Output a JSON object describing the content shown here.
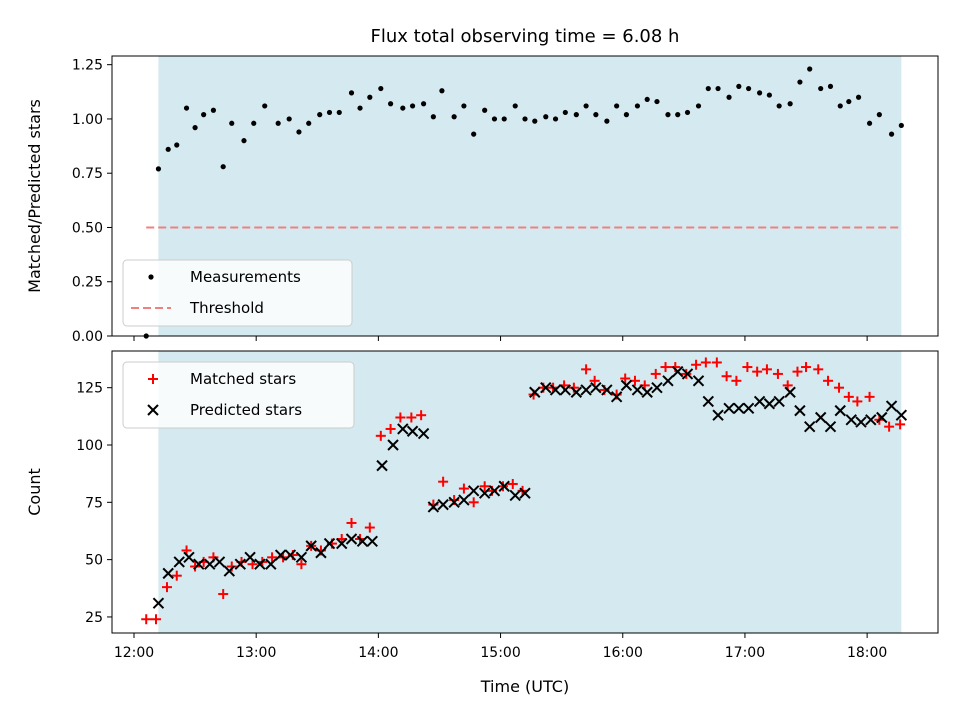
{
  "chart_data": {
    "title": "Flux total observing time = 6.08 h",
    "xlabel": "Time (UTC)",
    "x_ticks": [
      "12:00",
      "13:00",
      "14:00",
      "15:00",
      "16:00",
      "17:00",
      "18:00"
    ],
    "x_tick_values": [
      12,
      13,
      14,
      15,
      16,
      17,
      18
    ],
    "xlim": [
      11.82,
      18.58
    ],
    "observing_window": [
      12.2,
      18.28
    ],
    "colors": {
      "shade": "#d4eaf0",
      "threshold": "#f08080",
      "matched": "#ff0000",
      "predicted": "#000000",
      "measurements": "#000000"
    },
    "panels": [
      {
        "type": "scatter",
        "ylabel": "Matched/Predicted stars",
        "ylim": [
          0,
          1.29
        ],
        "y_ticks": [
          "0.00",
          "0.25",
          "0.50",
          "0.75",
          "1.00",
          "1.25"
        ],
        "y_tick_values": [
          0,
          0.25,
          0.5,
          0.75,
          1.0,
          1.25
        ],
        "threshold": {
          "value": 0.5,
          "x_range": [
            12.1,
            18.28
          ]
        },
        "legend": {
          "placement": "lower-left",
          "entries": [
            "Measurements",
            "Threshold"
          ]
        },
        "series": [
          {
            "name": "Measurements",
            "x": [
              12.1,
              12.2,
              12.28,
              12.35,
              12.43,
              12.5,
              12.57,
              12.65,
              12.73,
              12.8,
              12.9,
              12.98,
              13.07,
              13.18,
              13.27,
              13.35,
              13.43,
              13.52,
              13.6,
              13.68,
              13.78,
              13.85,
              13.93,
              14.02,
              14.1,
              14.2,
              14.28,
              14.37,
              14.45,
              14.52,
              14.62,
              14.7,
              14.78,
              14.87,
              14.95,
              15.03,
              15.12,
              15.2,
              15.28,
              15.37,
              15.45,
              15.53,
              15.62,
              15.7,
              15.78,
              15.87,
              15.95,
              16.03,
              16.12,
              16.2,
              16.28,
              16.37,
              16.45,
              16.53,
              16.62,
              16.7,
              16.78,
              16.87,
              16.95,
              17.03,
              17.12,
              17.2,
              17.28,
              17.37,
              17.45,
              17.53,
              17.62,
              17.7,
              17.78,
              17.85,
              17.93,
              18.02,
              18.1,
              18.2,
              18.28
            ],
            "y": [
              0.0,
              0.77,
              0.86,
              0.88,
              1.05,
              0.96,
              1.02,
              1.04,
              0.78,
              0.98,
              0.9,
              0.98,
              1.06,
              0.98,
              1.0,
              0.94,
              0.98,
              1.02,
              1.03,
              1.03,
              1.12,
              1.05,
              1.1,
              1.14,
              1.07,
              1.05,
              1.06,
              1.07,
              1.01,
              1.13,
              1.01,
              1.06,
              0.93,
              1.04,
              1.0,
              1.0,
              1.06,
              1.0,
              0.99,
              1.01,
              1.0,
              1.03,
              1.02,
              1.06,
              1.02,
              0.99,
              1.06,
              1.02,
              1.06,
              1.09,
              1.08,
              1.02,
              1.02,
              1.03,
              1.06,
              1.14,
              1.14,
              1.1,
              1.15,
              1.14,
              1.12,
              1.11,
              1.06,
              1.07,
              1.17,
              1.23,
              1.14,
              1.15,
              1.06,
              1.08,
              1.1,
              0.98,
              1.02,
              0.93,
              0.97
            ]
          }
        ]
      },
      {
        "type": "scatter",
        "ylabel": "Count",
        "ylim": [
          18,
          141
        ],
        "y_ticks": [
          "25",
          "50",
          "75",
          "100",
          "125"
        ],
        "y_tick_values": [
          25,
          50,
          75,
          100,
          125
        ],
        "legend": {
          "placement": "top-left",
          "entries": [
            "Matched stars",
            "Predicted stars"
          ]
        },
        "series": [
          {
            "name": "Matched stars",
            "x": [
              12.1,
              12.18,
              12.27,
              12.35,
              12.43,
              12.5,
              12.57,
              12.65,
              12.73,
              12.8,
              12.88,
              12.97,
              13.05,
              13.13,
              13.22,
              13.3,
              13.37,
              13.45,
              13.53,
              13.62,
              13.7,
              13.78,
              13.85,
              13.93,
              14.02,
              14.1,
              14.18,
              14.27,
              14.35,
              14.45,
              14.53,
              14.62,
              14.7,
              14.78,
              14.87,
              14.93,
              15.02,
              15.1,
              15.18,
              15.27,
              15.35,
              15.43,
              15.52,
              15.6,
              15.7,
              15.77,
              15.85,
              15.95,
              16.02,
              16.1,
              16.18,
              16.27,
              16.35,
              16.43,
              16.52,
              16.6,
              16.68,
              16.77,
              16.85,
              16.93,
              17.02,
              17.1,
              17.18,
              17.27,
              17.35,
              17.43,
              17.5,
              17.6,
              17.68,
              17.77,
              17.85,
              17.92,
              18.02,
              18.1,
              18.18,
              18.27
            ],
            "y": [
              24,
              24,
              38,
              43,
              54,
              47,
              49,
              51,
              35,
              47,
              49,
              48,
              49,
              51,
              51,
              52,
              48,
              56,
              54,
              57,
              59,
              66,
              59,
              64,
              104,
              107,
              112,
              112,
              113,
              74,
              84,
              76,
              81,
              75,
              82,
              80,
              82,
              83,
              80,
              122,
              125,
              125,
              126,
              125,
              133,
              128,
              124,
              122,
              129,
              128,
              126,
              131,
              134,
              134,
              131,
              135,
              136,
              136,
              130,
              128,
              134,
              132,
              133,
              131,
              126,
              132,
              134,
              133,
              128,
              125,
              121,
              119,
              121,
              111,
              108,
              109
            ]
          },
          {
            "name": "Predicted stars",
            "x": [
              12.2,
              12.28,
              12.37,
              12.45,
              12.53,
              12.62,
              12.7,
              12.78,
              12.87,
              12.95,
              13.03,
              13.12,
              13.2,
              13.28,
              13.37,
              13.45,
              13.53,
              13.6,
              13.7,
              13.78,
              13.87,
              13.95,
              14.03,
              14.12,
              14.2,
              14.28,
              14.37,
              14.45,
              14.53,
              14.62,
              14.7,
              14.78,
              14.87,
              14.95,
              15.03,
              15.12,
              15.2,
              15.28,
              15.37,
              15.45,
              15.53,
              15.62,
              15.7,
              15.78,
              15.87,
              15.95,
              16.03,
              16.12,
              16.2,
              16.28,
              16.37,
              16.45,
              16.53,
              16.62,
              16.7,
              16.78,
              16.87,
              16.95,
              17.03,
              17.12,
              17.2,
              17.28,
              17.37,
              17.45,
              17.53,
              17.62,
              17.7,
              17.78,
              17.87,
              17.95,
              18.03,
              18.12,
              18.2,
              18.28
            ],
            "y": [
              31,
              44,
              49,
              51,
              48,
              48,
              49,
              45,
              48,
              51,
              48,
              48,
              52,
              52,
              51,
              56,
              53,
              57,
              57,
              59,
              58,
              58,
              91,
              100,
              107,
              106,
              105,
              73,
              74,
              75,
              76,
              80,
              79,
              80,
              82,
              78,
              79,
              123,
              125,
              124,
              124,
              123,
              124,
              125,
              124,
              121,
              126,
              124,
              123,
              125,
              128,
              132,
              131,
              128,
              119,
              113,
              116,
              116,
              116,
              119,
              118,
              119,
              123,
              115,
              108,
              112,
              108,
              115,
              111,
              110,
              111,
              112,
              117,
              113
            ]
          }
        ]
      }
    ]
  }
}
